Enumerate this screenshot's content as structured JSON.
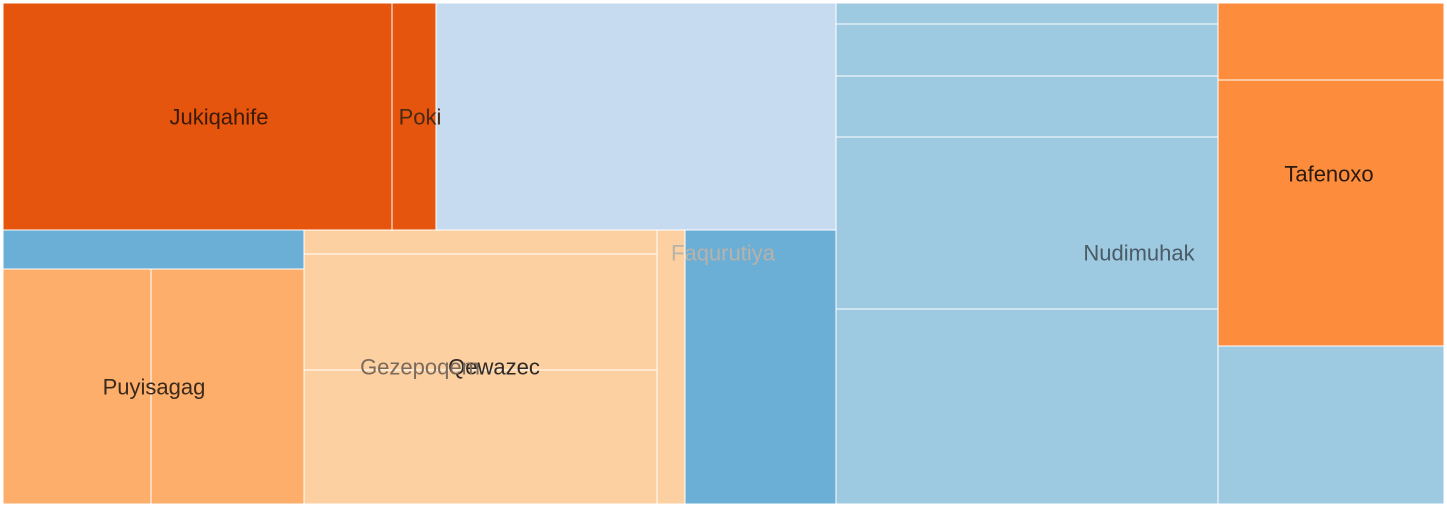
{
  "chart_data": {
    "type": "treemap",
    "colors": {
      "dark_orange": "#e6550d",
      "orange": "#fd8d3c",
      "light_orange": "#fdae6b",
      "pale_orange": "#fdd0a2",
      "blue": "#6baed6",
      "light_blue": "#9ecae1",
      "pale_blue": "#c6dbef"
    },
    "groups": [
      {
        "label": "Jukiqahife",
        "label_color": "#3b1a08",
        "tiles": [
          {
            "value": 88770,
            "color": "#e6550d"
          },
          {
            "value": 10000,
            "color": "#e6550d"
          }
        ]
      },
      {
        "label": "Poki",
        "label_color": "#4a2a14",
        "tiles": [
          {
            "value": 91000,
            "color": "#c6dbef"
          }
        ]
      },
      {
        "label": "",
        "label_color": "#333333",
        "tiles": [
          {
            "value": 11550,
            "color": "#6baed6"
          }
        ]
      },
      {
        "label": "Puyisagag",
        "label_color": "#3a2a1c",
        "tiles": [
          {
            "value": 34500,
            "color": "#fdae6b"
          },
          {
            "value": 35800,
            "color": "#fdae6b"
          }
        ]
      },
      {
        "label": "Qewazec",
        "label_color": "#2e2a26",
        "tiles": [
          {
            "value": 8300,
            "color": "#fdd0a2"
          },
          {
            "value": 40850,
            "color": "#fdd0a2"
          },
          {
            "value": 46750,
            "color": "#fdd0a2"
          }
        ]
      },
      {
        "label": "Gezepoqem",
        "label_color": "#7a6a5c",
        "tiles": [],
        "label_anchor": "Qewazec"
      },
      {
        "label": "Faqurutiya",
        "label_color": "#b9b2a8",
        "tiles": [
          {
            "value": 7300,
            "color": "#fdd0a2"
          },
          {
            "value": 40200,
            "color": "#6baed6"
          }
        ]
      },
      {
        "label": "Nudimuhak",
        "label_color": "#4a5a66",
        "tiles": [
          {
            "value": 7650,
            "color": "#9ecae1"
          },
          {
            "value": 19870,
            "color": "#9ecae1"
          },
          {
            "value": 23270,
            "color": "#9ecae1"
          },
          {
            "value": 65700,
            "color": "#9ecae1"
          },
          {
            "value": 73900,
            "color": "#9ecae1"
          }
        ]
      },
      {
        "label": "Tafenoxo",
        "label_color": "#2a1a10",
        "tiles": [
          {
            "value": 17200,
            "color": "#fd8d3c"
          },
          {
            "value": 59900,
            "color": "#fd8d3c"
          }
        ]
      },
      {
        "label": "",
        "label_color": "#333333",
        "tiles": [
          {
            "value": 35800,
            "color": "#9ecae1"
          }
        ]
      }
    ]
  }
}
